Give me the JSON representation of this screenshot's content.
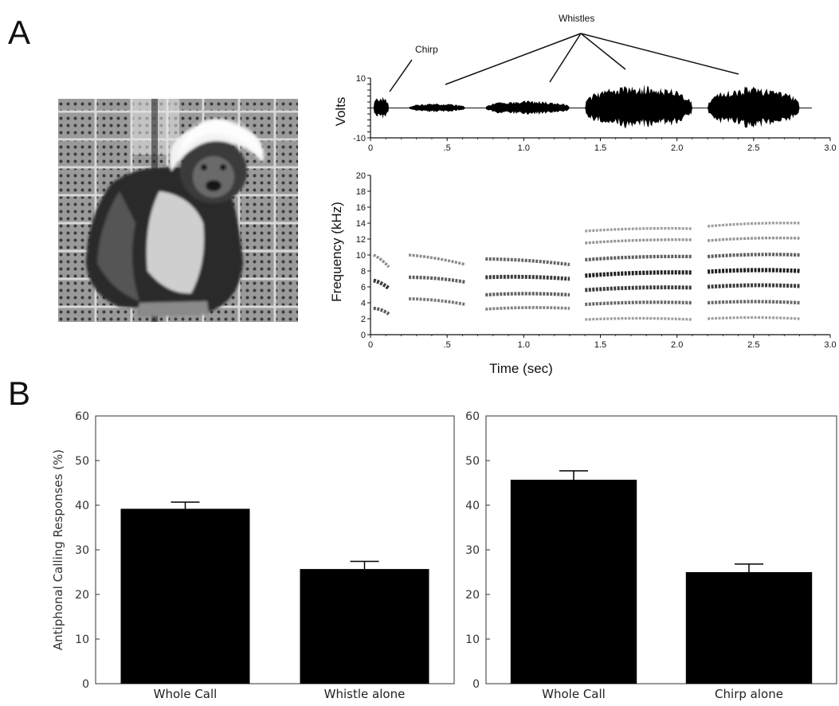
{
  "panel_labels": {
    "a": "A",
    "b": "B"
  },
  "photo": {
    "subject": "cotton-top tamarin photograph"
  },
  "annotations": {
    "chirp": "Chirp",
    "whistles": "Whistles"
  },
  "chart_data": [
    {
      "type": "line",
      "id": "waveform",
      "ylabel": "Volts",
      "xlim": [
        0,
        3.0
      ],
      "ylim": [
        -10,
        10
      ],
      "y_tick_labels": [
        "10",
        "-10"
      ],
      "x_tick_labels": [
        "0",
        ".5",
        "1.0",
        "1.5",
        "2.0",
        "2.5",
        "3.0"
      ],
      "segments": [
        {
          "label": "Chirp",
          "start": 0.02,
          "end": 0.12,
          "amplitude": 4
        },
        {
          "label": "Whistle 1",
          "start": 0.25,
          "end": 0.62,
          "amplitude": 1.5
        },
        {
          "label": "Whistle 2",
          "start": 0.75,
          "end": 1.3,
          "amplitude": 2.5
        },
        {
          "label": "Whistle 3",
          "start": 1.4,
          "end": 2.1,
          "amplitude": 8
        },
        {
          "label": "Whistle 4",
          "start": 2.2,
          "end": 2.8,
          "amplitude": 7.5
        }
      ]
    },
    {
      "type": "heatmap",
      "id": "spectrogram",
      "ylabel": "Frequency (kHz)",
      "xlabel": "Time (sec)",
      "xlim": [
        0,
        3.0
      ],
      "ylim": [
        0,
        20
      ],
      "y_tick_labels": [
        "0",
        "2",
        "4",
        "6",
        "8",
        "10",
        "12",
        "14",
        "16",
        "18",
        "20"
      ],
      "x_tick_labels": [
        "0",
        ".5",
        "1.0",
        "1.5",
        "2.0",
        "2.5",
        "3.0"
      ],
      "calls": [
        {
          "start": 0.02,
          "end": 0.12,
          "harmonics": [
            [
              10.0,
              8.5
            ],
            [
              6.8,
              5.8
            ],
            [
              3.3,
              2.6
            ]
          ],
          "intensity": [
            0.35,
            0.8,
            0.6
          ]
        },
        {
          "start": 0.25,
          "end": 0.62,
          "harmonics": [
            [
              10.0,
              8.8
            ],
            [
              7.2,
              6.6
            ],
            [
              4.5,
              3.8
            ]
          ],
          "intensity": [
            0.35,
            0.6,
            0.45
          ]
        },
        {
          "start": 0.75,
          "end": 1.3,
          "harmonics": [
            [
              9.5,
              8.8
            ],
            [
              7.2,
              7.0
            ],
            [
              5.0,
              5.0
            ],
            [
              3.2,
              3.3
            ]
          ],
          "intensity": [
            0.55,
            0.8,
            0.6,
            0.4
          ]
        },
        {
          "start": 1.4,
          "end": 2.1,
          "harmonics": [
            [
              13.0,
              13.3
            ],
            [
              11.5,
              11.9
            ],
            [
              9.4,
              9.8
            ],
            [
              7.4,
              7.8
            ],
            [
              5.6,
              5.9
            ],
            [
              3.8,
              4.0
            ],
            [
              1.9,
              1.9
            ]
          ],
          "intensity": [
            0.25,
            0.3,
            0.6,
            0.95,
            0.8,
            0.55,
            0.25
          ]
        },
        {
          "start": 2.2,
          "end": 2.8,
          "harmonics": [
            [
              13.6,
              14.0
            ],
            [
              11.8,
              12.1
            ],
            [
              9.8,
              10.0
            ],
            [
              7.9,
              8.0
            ],
            [
              6.0,
              6.1
            ],
            [
              4.0,
              4.0
            ],
            [
              2.0,
              2.0
            ]
          ],
          "intensity": [
            0.25,
            0.3,
            0.6,
            0.95,
            0.8,
            0.55,
            0.25
          ]
        }
      ]
    },
    {
      "type": "bar",
      "id": "bars-left",
      "ylabel": "Antiphonal Calling Responses (%)",
      "ylim": [
        0,
        60
      ],
      "y_tick_labels": [
        "0",
        "10",
        "20",
        "30",
        "40",
        "50",
        "60"
      ],
      "categories": [
        "Whole Call",
        "Whistle alone"
      ],
      "values": [
        39.2,
        25.7
      ],
      "errors": [
        1.5,
        1.7
      ]
    },
    {
      "type": "bar",
      "id": "bars-right",
      "ylim": [
        0,
        60
      ],
      "y_tick_labels": [
        "0",
        "10",
        "20",
        "30",
        "40",
        "50",
        "60"
      ],
      "categories": [
        "Whole Call",
        "Chirp alone"
      ],
      "values": [
        45.7,
        25.0
      ],
      "errors": [
        2.0,
        1.8
      ]
    }
  ]
}
